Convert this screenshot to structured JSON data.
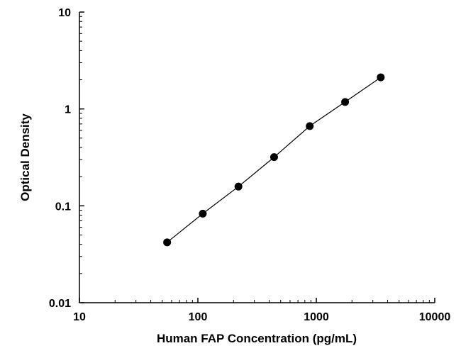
{
  "chart_data": {
    "type": "line",
    "title": "",
    "xlabel": "Human FAP Concentration (pg/mL)",
    "ylabel": "Optical Density",
    "x_scale": "log",
    "y_scale": "log",
    "xlim": [
      10,
      10000
    ],
    "ylim": [
      0.01,
      10
    ],
    "x_ticks": [
      "10",
      "100",
      "1000",
      "10000"
    ],
    "y_ticks": [
      "0.01",
      "0.1",
      "1",
      "10"
    ],
    "grid": false,
    "legend": "none",
    "series": [
      {
        "x": [
          55,
          110,
          220,
          440,
          880,
          1750,
          3500
        ],
        "y": [
          0.042,
          0.083,
          0.158,
          0.318,
          0.665,
          1.18,
          2.12
        ],
        "marker": "filled-circle",
        "color": "#000000"
      }
    ]
  }
}
